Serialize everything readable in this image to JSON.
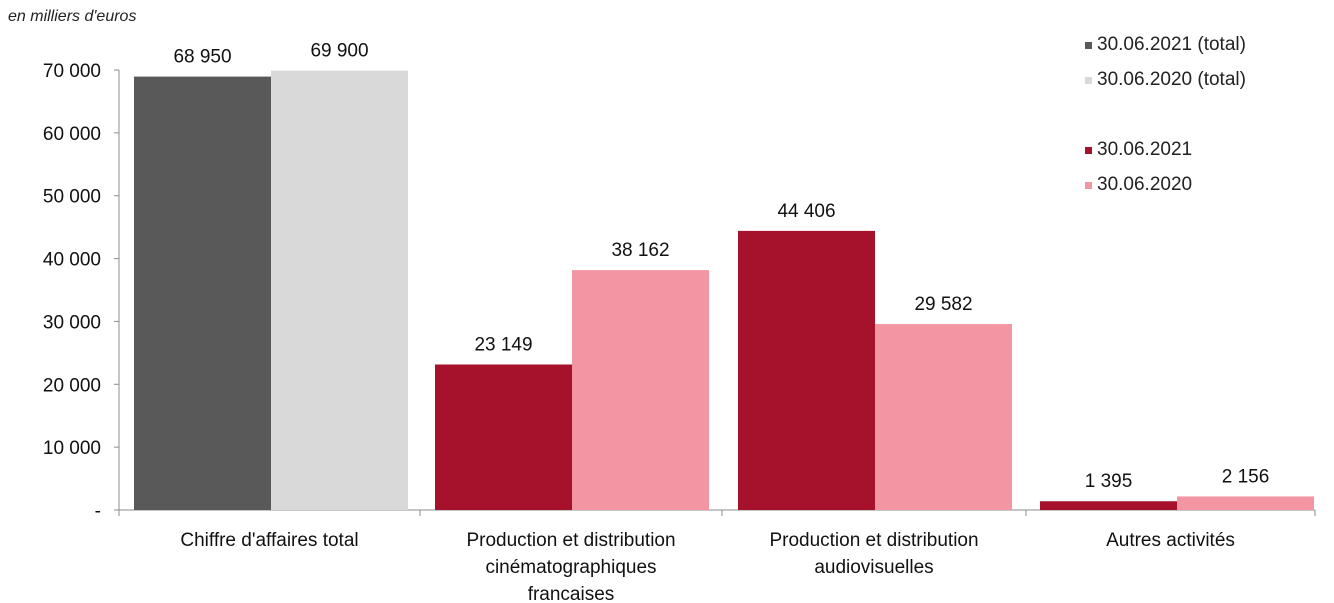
{
  "unit_label": "en milliers d'euros",
  "chart_data": {
    "type": "bar",
    "categories": [
      [
        "Chiffre d'affaires total"
      ],
      [
        "Production et distribution",
        "cinématographiques",
        "francaises"
      ],
      [
        "Production et distribution",
        "audiovisuelles"
      ],
      [
        "Autres activités"
      ]
    ],
    "bars": [
      {
        "category": 0,
        "series": "30.06.2021 (total)",
        "value": 68950,
        "label": "68 950",
        "color": "#595959"
      },
      {
        "category": 0,
        "series": "30.06.2020 (total)",
        "value": 69900,
        "label": "69 900",
        "color": "#d9d9d9"
      },
      {
        "category": 1,
        "series": "30.06.2021",
        "value": 23149,
        "label": "23 149",
        "color": "#a6122c"
      },
      {
        "category": 1,
        "series": "30.06.2020",
        "value": 38162,
        "label": "38 162",
        "color": "#f495a4"
      },
      {
        "category": 2,
        "series": "30.06.2021",
        "value": 44406,
        "label": "44 406",
        "color": "#a6122c"
      },
      {
        "category": 2,
        "series": "30.06.2020",
        "value": 29582,
        "label": "29 582",
        "color": "#f495a4"
      },
      {
        "category": 3,
        "series": "30.06.2021",
        "value": 1395,
        "label": "1 395",
        "color": "#a6122c"
      },
      {
        "category": 3,
        "series": "30.06.2020",
        "value": 2156,
        "label": "2 156",
        "color": "#f495a4"
      }
    ],
    "yticks": [
      {
        "value": 0,
        "label": "-"
      },
      {
        "value": 10000,
        "label": "10 000"
      },
      {
        "value": 20000,
        "label": "20 000"
      },
      {
        "value": 30000,
        "label": "30 000"
      },
      {
        "value": 40000,
        "label": "40 000"
      },
      {
        "value": 50000,
        "label": "50 000"
      },
      {
        "value": 60000,
        "label": "60 000"
      },
      {
        "value": 70000,
        "label": "70 000"
      }
    ],
    "ylim": [
      0,
      70000
    ],
    "grid": false,
    "legend_position": "top-right",
    "legend": [
      {
        "name": "30.06.2021 (total)",
        "color": "#595959"
      },
      {
        "name": "30.06.2020 (total)",
        "color": "#d9d9d9"
      },
      {
        "name": "30.06.2021",
        "color": "#a6122c"
      },
      {
        "name": "30.06.2020",
        "color": "#f495a4"
      }
    ]
  }
}
